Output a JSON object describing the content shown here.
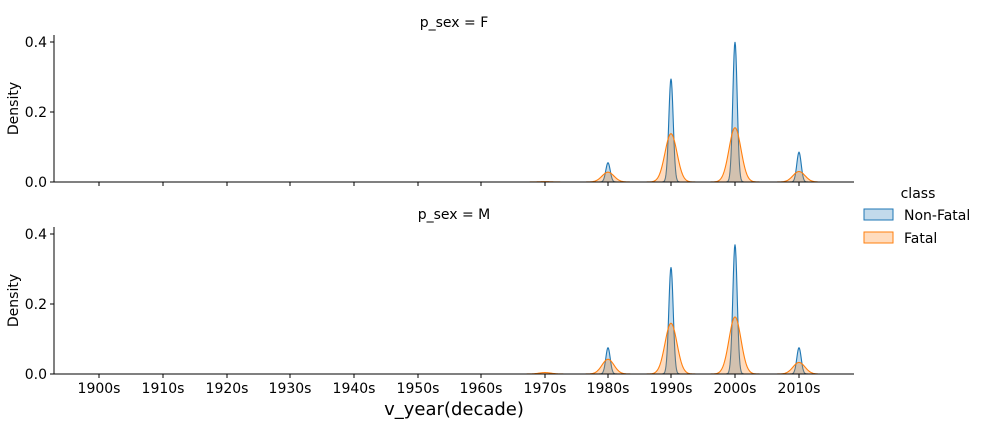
{
  "chart_data": {
    "type": "area",
    "xlabel": "v_year(decade)",
    "ylabel": "Density",
    "categories": [
      "1900s",
      "1910s",
      "1920s",
      "1930s",
      "1940s",
      "1950s",
      "1960s",
      "1970s",
      "1980s",
      "1990s",
      "2000s",
      "2010s"
    ],
    "ylim": [
      0,
      0.42
    ],
    "yticks": [
      "0.0",
      "0.2",
      "0.4"
    ],
    "legend": {
      "title": "class",
      "placement": "right",
      "entries": [
        {
          "name": "Non-Fatal",
          "color": "#1f77b4"
        },
        {
          "name": "Fatal",
          "color": "#ff7f0e"
        }
      ]
    },
    "panels": [
      {
        "title": "p_sex = F",
        "series": [
          {
            "name": "Non-Fatal",
            "peaks": [
              0,
              0,
              0,
              0,
              0,
              0,
              0,
              0,
              0.055,
              0.295,
              0.4,
              0.085
            ]
          },
          {
            "name": "Fatal",
            "peaks": [
              0,
              0,
              0,
              0,
              0,
              0,
              0,
              0.001,
              0.028,
              0.138,
              0.155,
              0.03
            ]
          }
        ]
      },
      {
        "title": "p_sex = M",
        "series": [
          {
            "name": "Non-Fatal",
            "peaks": [
              0,
              0,
              0,
              0,
              0,
              0,
              0,
              0,
              0.075,
              0.305,
              0.37,
              0.075
            ]
          },
          {
            "name": "Fatal",
            "peaks": [
              0,
              0,
              0,
              0,
              0,
              0,
              0,
              0.004,
              0.042,
              0.145,
              0.163,
              0.033
            ]
          }
        ]
      }
    ]
  }
}
